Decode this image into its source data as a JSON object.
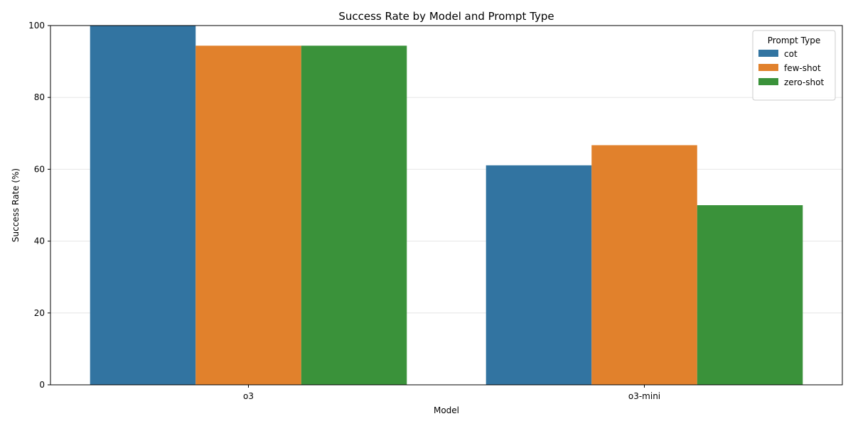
{
  "chart_data": {
    "type": "bar",
    "title": "Success Rate by Model and Prompt Type",
    "xlabel": "Model",
    "ylabel": "Success Rate (%)",
    "categories": [
      "o3",
      "o3-mini"
    ],
    "series": [
      {
        "name": "cot",
        "color": "#3274a1",
        "values": [
          100.0,
          61.1
        ]
      },
      {
        "name": "few-shot",
        "color": "#e1812c",
        "values": [
          94.4,
          66.7
        ]
      },
      {
        "name": "zero-shot",
        "color": "#3a923a",
        "values": [
          94.4,
          50.0
        ]
      }
    ],
    "ylim": [
      0,
      100
    ],
    "yticks": [
      0,
      20,
      40,
      60,
      80,
      100
    ],
    "grid": true,
    "legend": {
      "title": "Prompt Type",
      "position": "top-right"
    }
  }
}
